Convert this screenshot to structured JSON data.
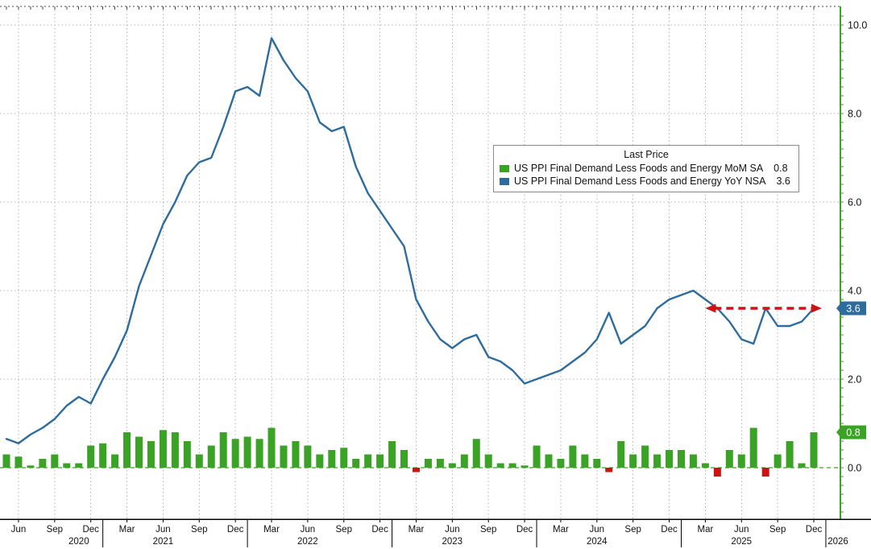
{
  "legend": {
    "title": "Last Price",
    "items": [
      {
        "label": "US PPI Final Demand Less Foods and Energy MoM SA",
        "value": "0.8",
        "color": "#3aa325"
      },
      {
        "label": "US PPI Final Demand Less Foods and Energy YoY NSA",
        "value": "3.6",
        "color": "#2e6c9e"
      }
    ]
  },
  "colors": {
    "line": "#2e6c9e",
    "positive": "#3aa325",
    "negative": "#cc1414",
    "grid": "#b5b5b5",
    "axis": "#000000"
  },
  "axes": {
    "y_tick_labels": [
      "10.0",
      "8.0",
      "6.0",
      "4.0",
      "2.0",
      "0.0"
    ],
    "x_month_ticks": [
      "Jun",
      "Sep",
      "Dec",
      "Mar",
      "Jun",
      "Sep",
      "Dec",
      "Mar",
      "Jun",
      "Sep",
      "Dec",
      "Mar",
      "Jun",
      "Sep",
      "Dec",
      "Mar",
      "Jun",
      "Sep",
      "Dec",
      "Mar",
      "Jun",
      "Sep",
      "Dec"
    ],
    "x_year_labels": [
      "2020",
      "2021",
      "2022",
      "2023",
      "2024",
      "2025",
      "2026"
    ],
    "badges": [
      {
        "label": "3.6",
        "value": 3.6,
        "color": "#2e6c9e"
      },
      {
        "label": "0.8",
        "value": 0.8,
        "color": "#3aa325"
      }
    ]
  },
  "chart_data": {
    "type": "mixed",
    "title": "",
    "legend_title": "Last Price",
    "ylim": [
      -1.2,
      10.4
    ],
    "y_ticks": [
      0.0,
      2.0,
      4.0,
      6.0,
      8.0,
      10.0
    ],
    "grid": true,
    "x": [
      "2020-05",
      "2020-06",
      "2020-07",
      "2020-08",
      "2020-09",
      "2020-10",
      "2020-11",
      "2020-12",
      "2021-01",
      "2021-02",
      "2021-03",
      "2021-04",
      "2021-05",
      "2021-06",
      "2021-07",
      "2021-08",
      "2021-09",
      "2021-10",
      "2021-11",
      "2021-12",
      "2022-01",
      "2022-02",
      "2022-03",
      "2022-04",
      "2022-05",
      "2022-06",
      "2022-07",
      "2022-08",
      "2022-09",
      "2022-10",
      "2022-11",
      "2022-12",
      "2023-01",
      "2023-02",
      "2023-03",
      "2023-04",
      "2023-05",
      "2023-06",
      "2023-07",
      "2023-08",
      "2023-09",
      "2023-10",
      "2023-11",
      "2023-12",
      "2024-01",
      "2024-02",
      "2024-03",
      "2024-04",
      "2024-05",
      "2024-06",
      "2024-07",
      "2024-08",
      "2024-09",
      "2024-10",
      "2024-11",
      "2024-12",
      "2025-01",
      "2025-02",
      "2025-03",
      "2025-04",
      "2025-05",
      "2025-06",
      "2025-07",
      "2025-08",
      "2025-09",
      "2025-10",
      "2025-11",
      "2025-12"
    ],
    "series": [
      {
        "name": "US PPI Final Demand Less Foods and Energy MoM SA",
        "type": "bar",
        "last_price": 0.8,
        "color_positive": "#3aa325",
        "color_negative": "#cc1414",
        "values": [
          0.3,
          0.25,
          0.05,
          0.2,
          0.3,
          0.1,
          0.1,
          0.5,
          0.55,
          0.3,
          0.8,
          0.7,
          0.6,
          0.85,
          0.8,
          0.6,
          0.3,
          0.5,
          0.8,
          0.65,
          0.7,
          0.65,
          0.9,
          0.5,
          0.6,
          0.5,
          0.3,
          0.4,
          0.45,
          0.2,
          0.3,
          0.3,
          0.6,
          0.4,
          -0.1,
          0.2,
          0.2,
          0.1,
          0.3,
          0.65,
          0.3,
          0.1,
          0.1,
          0.05,
          0.5,
          0.3,
          0.2,
          0.5,
          0.3,
          0.2,
          -0.1,
          0.6,
          0.3,
          0.5,
          0.3,
          0.4,
          0.4,
          0.3,
          0.1,
          -0.2,
          0.4,
          0.3,
          0.9,
          -0.2,
          0.3,
          0.6,
          0.1,
          0.8
        ]
      },
      {
        "name": "US PPI Final Demand Less Foods and Energy YoY NSA",
        "type": "line",
        "last_price": 3.6,
        "color": "#2e6c9e",
        "values": [
          0.65,
          0.55,
          0.75,
          0.9,
          1.1,
          1.4,
          1.6,
          1.45,
          2.0,
          2.5,
          3.1,
          4.1,
          4.8,
          5.5,
          6.0,
          6.6,
          6.9,
          7.0,
          7.7,
          8.5,
          8.6,
          8.4,
          9.7,
          9.2,
          8.8,
          8.5,
          7.8,
          7.6,
          7.7,
          6.8,
          6.2,
          5.8,
          5.4,
          5.0,
          3.8,
          3.3,
          2.9,
          2.7,
          2.9,
          3.0,
          2.5,
          2.4,
          2.2,
          1.9,
          2.0,
          2.1,
          2.2,
          2.4,
          2.6,
          2.9,
          3.5,
          2.8,
          3.0,
          3.2,
          3.6,
          3.8,
          3.9,
          4.0,
          3.8,
          3.6,
          3.3,
          2.9,
          2.8,
          3.6,
          3.2,
          3.2,
          3.3,
          3.6
        ]
      }
    ],
    "annotation": {
      "type": "double_arrow",
      "style": "dashed",
      "color": "#cc1414",
      "y": 3.6,
      "from": "2025-03",
      "to": "2025-12"
    }
  }
}
